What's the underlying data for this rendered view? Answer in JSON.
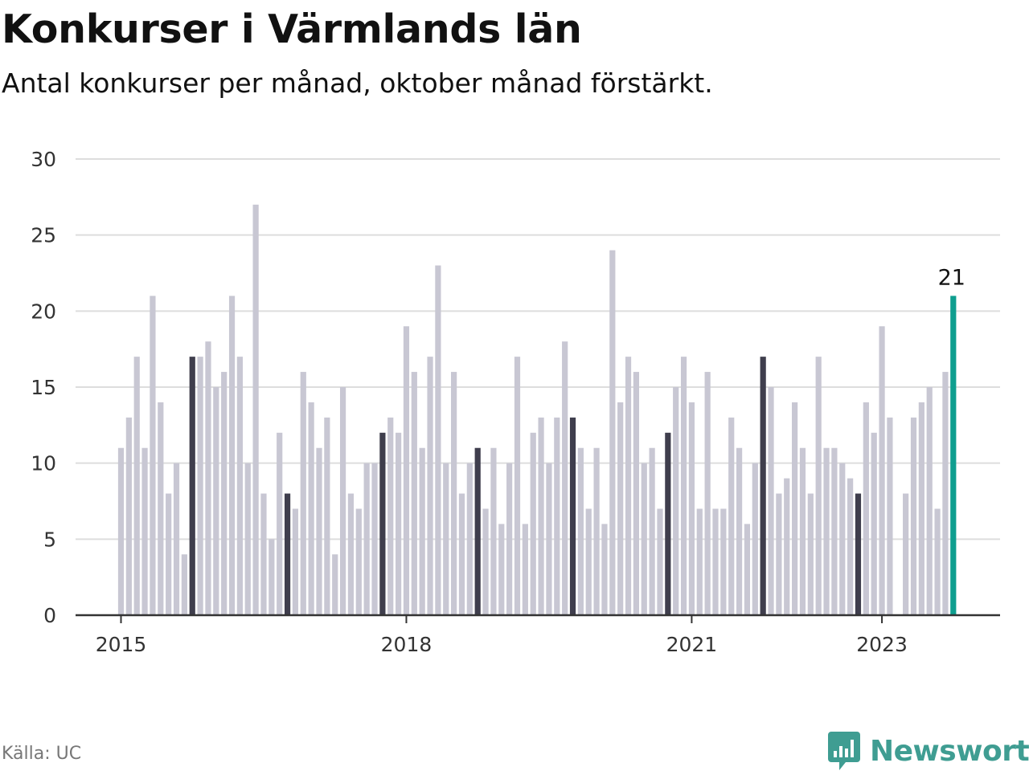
{
  "chart_data": {
    "type": "bar",
    "title": "Konkurser i Värmlands län",
    "subtitle": "Antal konkurser per månad, oktober månad förstärkt.",
    "ylim": [
      0,
      30
    ],
    "y_ticks": [
      0,
      5,
      10,
      15,
      20,
      25,
      30
    ],
    "x_tick_labels": [
      "2015",
      "2018",
      "2021",
      "2023"
    ],
    "x": [
      "2015-01",
      "2015-02",
      "2015-03",
      "2015-04",
      "2015-05",
      "2015-06",
      "2015-07",
      "2015-08",
      "2015-09",
      "2015-10",
      "2015-11",
      "2015-12",
      "2016-01",
      "2016-02",
      "2016-03",
      "2016-04",
      "2016-05",
      "2016-06",
      "2016-07",
      "2016-08",
      "2016-09",
      "2016-10",
      "2016-11",
      "2016-12",
      "2017-01",
      "2017-02",
      "2017-03",
      "2017-04",
      "2017-05",
      "2017-06",
      "2017-07",
      "2017-08",
      "2017-09",
      "2017-10",
      "2017-11",
      "2017-12",
      "2018-01",
      "2018-02",
      "2018-03",
      "2018-04",
      "2018-05",
      "2018-06",
      "2018-07",
      "2018-08",
      "2018-09",
      "2018-10",
      "2018-11",
      "2018-12",
      "2019-01",
      "2019-02",
      "2019-03",
      "2019-04",
      "2019-05",
      "2019-06",
      "2019-07",
      "2019-08",
      "2019-09",
      "2019-10",
      "2019-11",
      "2019-12",
      "2020-01",
      "2020-02",
      "2020-03",
      "2020-04",
      "2020-05",
      "2020-06",
      "2020-07",
      "2020-08",
      "2020-09",
      "2020-10",
      "2020-11",
      "2020-12",
      "2021-01",
      "2021-02",
      "2021-03",
      "2021-04",
      "2021-05",
      "2021-06",
      "2021-07",
      "2021-08",
      "2021-09",
      "2021-10",
      "2021-11",
      "2021-12",
      "2022-01",
      "2022-02",
      "2022-03",
      "2022-04",
      "2022-05",
      "2022-06",
      "2022-07",
      "2022-08",
      "2022-09",
      "2022-10",
      "2022-11",
      "2022-12",
      "2023-01",
      "2023-02",
      "2023-03",
      "2023-04",
      "2023-05",
      "2023-06",
      "2023-07",
      "2023-08",
      "2023-09",
      "2023-10"
    ],
    "values": [
      11,
      13,
      17,
      11,
      21,
      14,
      8,
      10,
      4,
      17,
      17,
      18,
      15,
      16,
      21,
      17,
      10,
      27,
      8,
      5,
      12,
      8,
      7,
      16,
      14,
      11,
      13,
      4,
      15,
      8,
      7,
      10,
      10,
      12,
      13,
      12,
      19,
      16,
      11,
      17,
      23,
      10,
      16,
      8,
      10,
      11,
      7,
      11,
      6,
      10,
      17,
      6,
      12,
      13,
      10,
      13,
      18,
      13,
      11,
      7,
      11,
      6,
      24,
      14,
      17,
      16,
      10,
      11,
      7,
      12,
      15,
      17,
      14,
      7,
      16,
      7,
      7,
      13,
      11,
      6,
      10,
      17,
      15,
      8,
      9,
      14,
      11,
      8,
      17,
      11,
      11,
      10,
      9,
      8,
      14,
      12,
      19,
      13,
      0,
      8,
      13,
      14,
      15,
      7,
      16,
      21
    ],
    "highlight_month": "10",
    "latest_label": "21",
    "colors": {
      "normal": "#c8c7d3",
      "october": "#3f3e4d",
      "latest": "#0e9e8f",
      "grid": "#dddddd",
      "axis": "#333333"
    }
  },
  "footer": {
    "source": "Källa: UC",
    "brand": "Newsworthy",
    "brand_icon": "newsworthy-chart-bubble-icon"
  }
}
